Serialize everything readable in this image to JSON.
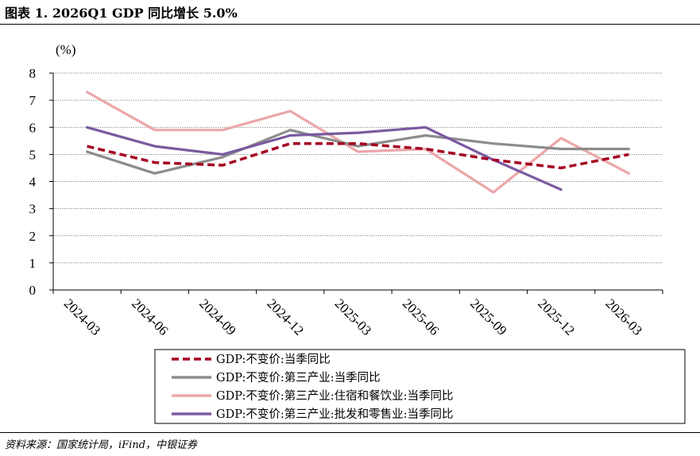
{
  "header": {
    "title": "图表 1. 2026Q1 GDP 同比增长 5.0%"
  },
  "footer": {
    "source": "资料来源：国家统计局，iFind，中银证券"
  },
  "chart_data": {
    "type": "line",
    "unit_label": "(%)",
    "ylim": [
      0,
      8
    ],
    "yticks": [
      "0",
      "1",
      "2",
      "3",
      "4",
      "5",
      "6",
      "7",
      "8"
    ],
    "grid": "horizontal dotted",
    "legend_placement": "bottom",
    "categories": [
      "2024-03",
      "2024-06",
      "2024-09",
      "2024-12",
      "2025-03",
      "2025-06",
      "2025-09",
      "2025-12",
      "2026-03"
    ],
    "series": [
      {
        "name": "GDP:不变价:当季同比",
        "color": "#a50021",
        "style": "dashed",
        "values": [
          5.3,
          4.7,
          4.6,
          5.4,
          5.4,
          5.2,
          4.8,
          4.5,
          5.0
        ]
      },
      {
        "name": "GDP:不变价:第三产业:当季同比",
        "color": "#8c8c8c",
        "style": "solid",
        "values": [
          5.1,
          4.3,
          4.9,
          5.9,
          5.3,
          5.7,
          5.4,
          5.2,
          5.2
        ]
      },
      {
        "name": "GDP:不变价:第三产业:住宿和餐饮业:当季同比",
        "color": "#eba7a9",
        "style": "solid",
        "values": [
          7.3,
          5.9,
          5.9,
          6.6,
          5.1,
          5.2,
          3.6,
          5.6,
          4.3
        ]
      },
      {
        "name": "GDP:不变价:第三产业:批发和零售业:当季同比",
        "color": "#7a5aa0",
        "style": "solid",
        "values": [
          6.0,
          5.3,
          5.0,
          5.7,
          5.8,
          6.0,
          4.8,
          3.7,
          null
        ]
      }
    ]
  }
}
